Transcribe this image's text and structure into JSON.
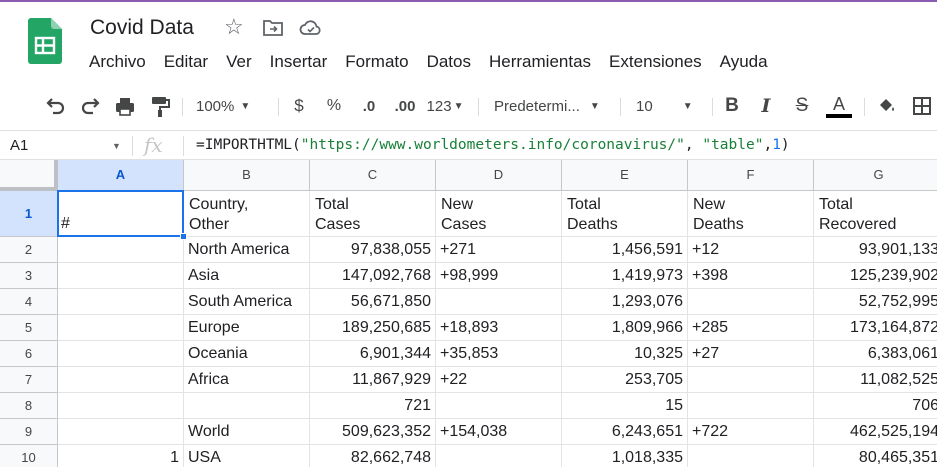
{
  "app": {
    "title": "Covid Data",
    "accent_color": "#188038",
    "selection_color": "#1a73e8"
  },
  "menu": [
    "Archivo",
    "Editar",
    "Ver",
    "Insertar",
    "Formato",
    "Datos",
    "Herramientas",
    "Extensiones",
    "Ayuda"
  ],
  "toolbar": {
    "zoom": "100%",
    "currency": "$",
    "percent": "%",
    "dec_decrease": ".0",
    "dec_increase": ".00",
    "more_formats": "123",
    "font": "Predetermi...",
    "font_size": "10",
    "bold": "B",
    "italic": "I",
    "strike": "S",
    "text_color": "A"
  },
  "formula_bar": {
    "cell_ref": "A1",
    "fx": "fx",
    "formula_prefix": "=IMPORTHTML(",
    "formula_url": "\"https://www.worldometers.info/coronavirus/\"",
    "formula_sep1": ", ",
    "formula_table": "\"table\"",
    "formula_sep2": ",",
    "formula_index": "1",
    "formula_suffix": ")"
  },
  "columns": [
    "A",
    "B",
    "C",
    "D",
    "E",
    "F",
    "G"
  ],
  "header_row": {
    "A": "#",
    "B": [
      "Country,",
      "Other"
    ],
    "C": [
      "Total",
      "Cases"
    ],
    "D": [
      "New",
      "Cases"
    ],
    "E": [
      "Total",
      "Deaths"
    ],
    "F": [
      "New",
      "Deaths"
    ],
    "G": [
      "Total",
      "Recovered"
    ]
  },
  "rows": [
    {
      "n": "2",
      "A": "",
      "B": "North America",
      "C": "97,838,055",
      "D": "+271",
      "E": "1,456,591",
      "F": "+12",
      "G": "93,901,133"
    },
    {
      "n": "3",
      "A": "",
      "B": "Asia",
      "C": "147,092,768",
      "D": "+98,999",
      "E": "1,419,973",
      "F": "+398",
      "G": "125,239,902"
    },
    {
      "n": "4",
      "A": "",
      "B": "South America",
      "C": "56,671,850",
      "D": "",
      "E": "1,293,076",
      "F": "",
      "G": "52,752,995"
    },
    {
      "n": "5",
      "A": "",
      "B": "Europe",
      "C": "189,250,685",
      "D": "+18,893",
      "E": "1,809,966",
      "F": "+285",
      "G": "173,164,872"
    },
    {
      "n": "6",
      "A": "",
      "B": "Oceania",
      "C": "6,901,344",
      "D": "+35,853",
      "E": "10,325",
      "F": "+27",
      "G": "6,383,061"
    },
    {
      "n": "7",
      "A": "",
      "B": "Africa",
      "C": "11,867,929",
      "D": "+22",
      "E": "253,705",
      "F": "",
      "G": "11,082,525"
    },
    {
      "n": "8",
      "A": "",
      "B": "",
      "C": "721",
      "D": "",
      "E": "15",
      "F": "",
      "G": "706"
    },
    {
      "n": "9",
      "A": "",
      "B": "World",
      "C": "509,623,352",
      "D": "+154,038",
      "E": "6,243,651",
      "F": "+722",
      "G": "462,525,194"
    },
    {
      "n": "10",
      "A": "1",
      "B": "USA",
      "C": "82,662,748",
      "D": "",
      "E": "1,018,335",
      "F": "",
      "G": "80,465,351"
    }
  ],
  "row1_label": "1"
}
